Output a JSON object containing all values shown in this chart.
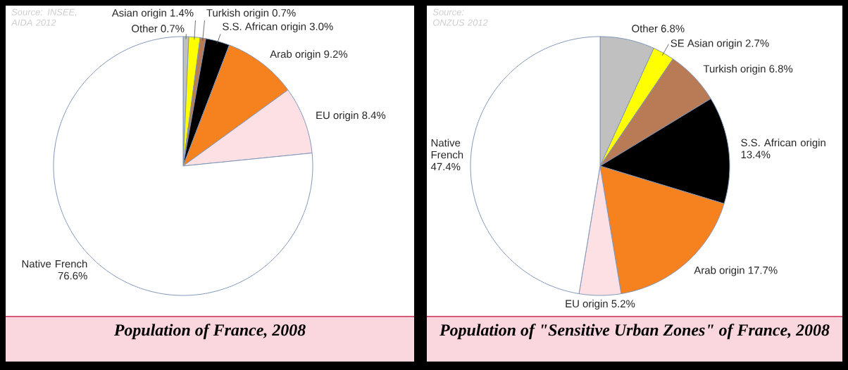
{
  "chart_data": [
    {
      "type": "pie",
      "title": "Population of France, 2008",
      "annotations": [
        "Source: INSEE, AIDA 2012"
      ],
      "categories": [
        "Other",
        "Asian origin",
        "Turkish origin",
        "S.S. African origin",
        "Arab origin",
        "EU origin",
        "Native French"
      ],
      "values": [
        0.7,
        1.4,
        0.7,
        3.0,
        9.2,
        8.4,
        76.6
      ],
      "value_labels": [
        "0.7%",
        "1.4%",
        "0.7%",
        "3.0%",
        "9.2%",
        "8.4%",
        "76.6%"
      ],
      "colors": [
        "#c0c0c0",
        "#ffff00",
        "#b97a56",
        "#000000",
        "#f5821f",
        "#fde0e4",
        "#ffffff"
      ]
    },
    {
      "type": "pie",
      "title": "Population of \"Sensitive Urban Zones\" of France, 2008",
      "annotations": [
        "Source: ONZUS 2012"
      ],
      "categories": [
        "Other",
        "SE Asian origin",
        "Turkish origin",
        "S.S. African origin",
        "Arab origin",
        "EU origin",
        "Native French"
      ],
      "values": [
        6.8,
        2.7,
        6.8,
        13.4,
        17.7,
        5.2,
        47.4
      ],
      "value_labels": [
        "6.8%",
        "2.7%",
        "6.8%",
        "13.4%",
        "17.7%",
        "5.2%",
        "47.4%"
      ],
      "colors": [
        "#c0c0c0",
        "#ffff00",
        "#b97a56",
        "#000000",
        "#f5821f",
        "#fde0e4",
        "#ffffff"
      ]
    }
  ]
}
